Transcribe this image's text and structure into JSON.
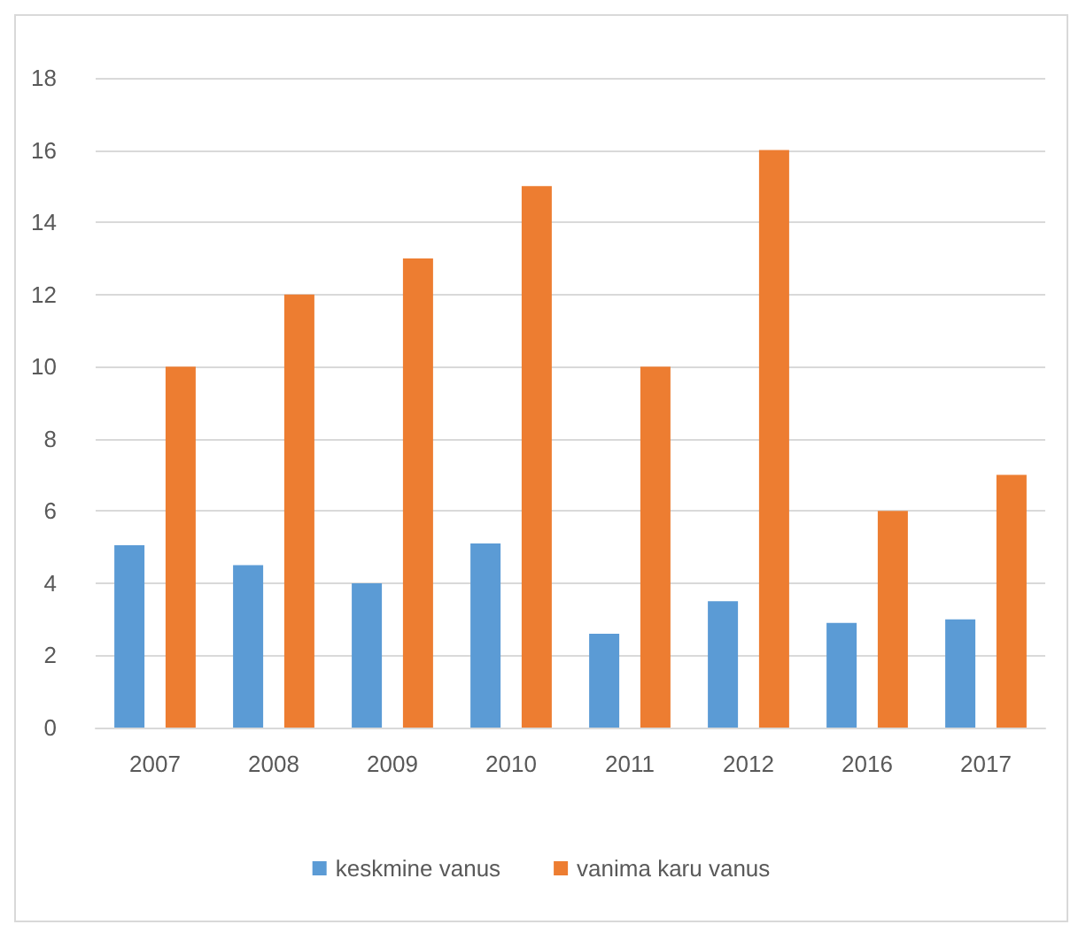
{
  "chart_data": {
    "type": "bar",
    "categories": [
      "2007",
      "2008",
      "2009",
      "2010",
      "2011",
      "2012",
      "2016",
      "2017"
    ],
    "series": [
      {
        "name": "keskmine vanus",
        "color": "#5b9bd5",
        "values": [
          5.05,
          4.5,
          4.0,
          5.1,
          2.6,
          3.5,
          2.9,
          3.0
        ]
      },
      {
        "name": "vanima karu vanus",
        "color": "#ed7d31",
        "values": [
          10,
          12,
          13,
          15,
          10,
          16,
          6,
          7
        ]
      }
    ],
    "ylim": [
      0,
      18
    ],
    "yticks": [
      0,
      2,
      4,
      6,
      8,
      10,
      12,
      14,
      16,
      18
    ],
    "grid": "y",
    "legend": "bottom"
  }
}
